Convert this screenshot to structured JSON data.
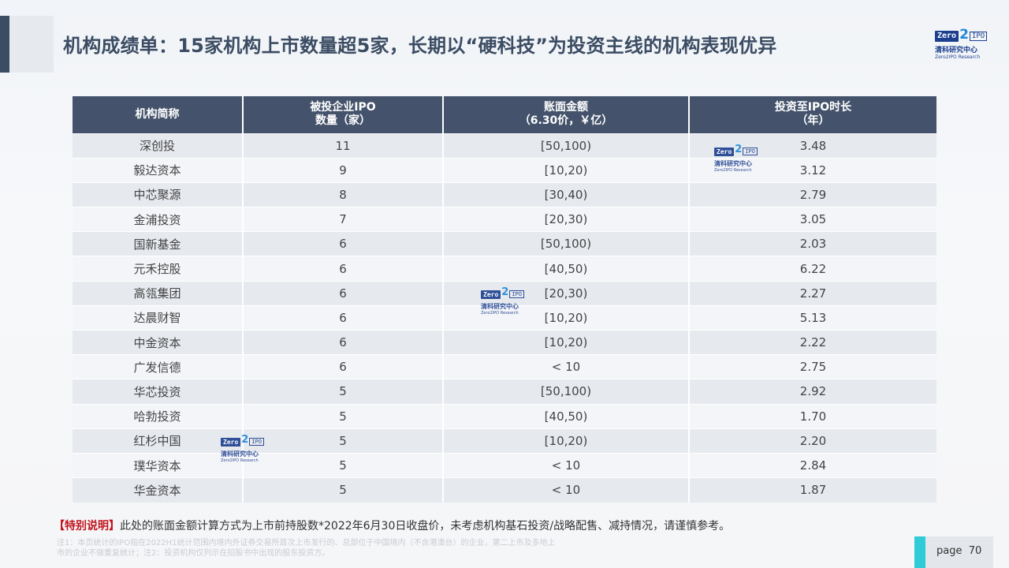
{
  "title": "机构成绩单：15家机构上市数量超5家，长期以“硬科技”为投资主线的机构表现优异",
  "logo": {
    "zero": "Zero",
    "two": "2",
    "ipo": "IPO",
    "cn": "清科研究中心",
    "en": "Zero2IPO Research"
  },
  "table": {
    "headers": [
      "机构简称",
      "被投企业IPO\n数量（家）",
      "账面金额\n（6.30价，￥亿）",
      "投资至IPO时长\n（年）"
    ],
    "rows": [
      [
        "深创投",
        "11",
        "[50,100)",
        "3.48"
      ],
      [
        "毅达资本",
        "9",
        "[10,20)",
        "3.12"
      ],
      [
        "中芯聚源",
        "8",
        "[30,40)",
        "2.79"
      ],
      [
        "金浦投资",
        "7",
        "[20,30)",
        "3.05"
      ],
      [
        "国新基金",
        "6",
        "[50,100)",
        "2.03"
      ],
      [
        "元禾控股",
        "6",
        "[40,50)",
        "6.22"
      ],
      [
        "高瓴集团",
        "6",
        "[20,30)",
        "2.27"
      ],
      [
        "达晨财智",
        "6",
        "[10,20)",
        "5.13"
      ],
      [
        "中金资本",
        "6",
        "[10,20)",
        "2.22"
      ],
      [
        "广发信德",
        "6",
        "< 10",
        "2.75"
      ],
      [
        "华芯投资",
        "5",
        "[50,100)",
        "2.92"
      ],
      [
        "哈勃投资",
        "5",
        "[40,50)",
        "1.70"
      ],
      [
        "红杉中国",
        "5",
        "[10,20)",
        "2.20"
      ],
      [
        "璞华资本",
        "5",
        "< 10",
        "2.84"
      ],
      [
        "华金资本",
        "5",
        "< 10",
        "1.87"
      ]
    ]
  },
  "note": {
    "highlight": "【特别说明】",
    "text": "此处的账面金额计算方式为上市前持股数*2022年6月30日收盘价，未考虑机构基石投资/战略配售、减持情况，请谨慎参考。"
  },
  "footnote": "注1：本页统计的IPO指在2022H1统计范围内境内外证券交易所首次上市发行的、总部位于中国境内（不含港澳台）的企业，第二上市及多地上市的企业不做重复统计；注2：投资机构仅列示在招股书中出现的股东投资方。",
  "page": {
    "label": "page",
    "number": "70"
  },
  "colors": {
    "header_bg": "#44536b",
    "accent": "#2fcbd6",
    "note_highlight": "#c0141d"
  }
}
